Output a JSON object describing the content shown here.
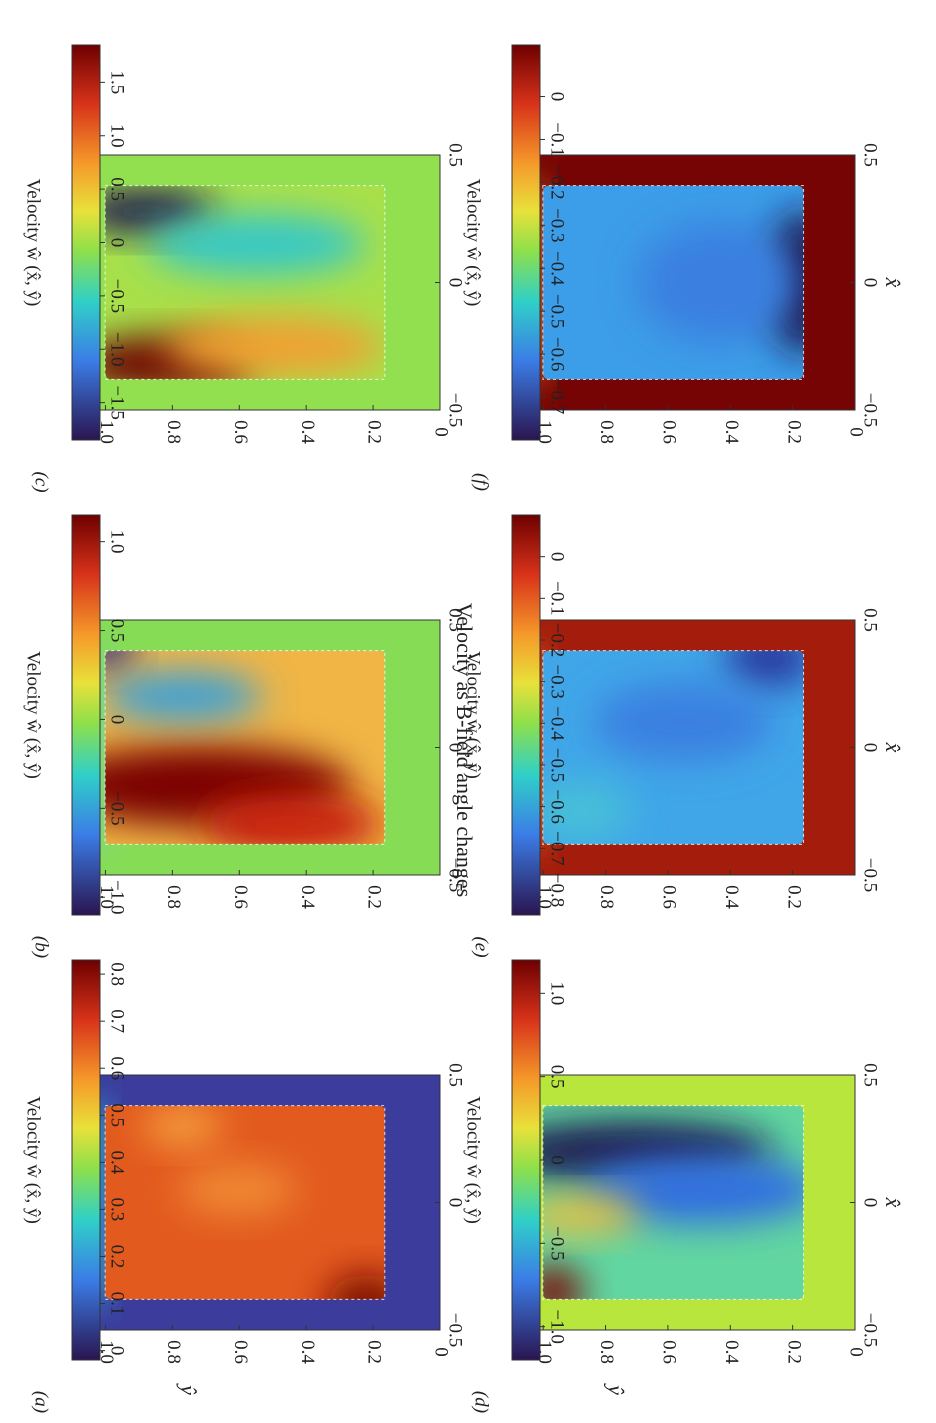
{
  "title": "Velocity as B-field angle changes",
  "chart_data": [
    {
      "type": "heatmap",
      "panel_label": "(a)",
      "ylabel": "ŷ",
      "colorbar_label": "Velocity ŵ (x̂, ŷ)",
      "xlim": [
        -0.5,
        0.5
      ],
      "xticks": [
        {
          "value": -0.5,
          "label": "−0.5"
        },
        0,
        0.5
      ],
      "ylim": [
        0,
        1.1
      ],
      "yticks": [
        0,
        0.2,
        0.4,
        0.6,
        0.8,
        {
          "value": 1,
          "label": "1.0"
        }
      ],
      "clim": [
        -0.02,
        0.83
      ],
      "cticks": [
        0,
        0.1,
        0.2,
        0.3,
        0.4,
        0.5,
        0.6,
        0.7,
        0.8
      ]
    },
    {
      "type": "heatmap",
      "panel_label": "(b)",
      "colorbar_label": "Velocity ŵ (x̂, ŷ)",
      "xlim": [
        -0.5,
        0.5
      ],
      "xticks": [
        {
          "value": -0.5,
          "label": "−0.5"
        },
        0,
        0.5
      ],
      "ylim": [
        0,
        1.1
      ],
      "yticks": [
        0.2,
        0.4,
        0.6,
        0.8,
        {
          "value": 1,
          "label": "1.0"
        }
      ],
      "clim": [
        -1.1,
        1.15
      ],
      "cticks": [
        {
          "value": 1,
          "label": "1.0"
        },
        0.5,
        0,
        {
          "value": -0.5,
          "label": "−0.5"
        },
        {
          "value": -1,
          "label": "−1.0"
        }
      ]
    },
    {
      "type": "heatmap",
      "panel_label": "(c)",
      "colorbar_label": "Velocity ŵ (x̂, ŷ)",
      "xlim": [
        -0.5,
        0.5
      ],
      "xticks": [
        {
          "value": -0.5,
          "label": "−0.5"
        },
        0,
        0.5
      ],
      "ylim": [
        0,
        1.1
      ],
      "yticks": [
        0,
        0.2,
        0.4,
        0.6,
        0.8,
        {
          "value": 1,
          "label": "1.0"
        }
      ],
      "clim": [
        -1.85,
        1.85
      ],
      "cticks": [
        1.5,
        {
          "value": 1,
          "label": "1.0"
        },
        0.5,
        0,
        {
          "value": -0.5,
          "label": "−0.5"
        },
        {
          "value": -1,
          "label": "−1.0"
        },
        {
          "value": -1.5,
          "label": "−1.5"
        }
      ]
    },
    {
      "type": "heatmap",
      "panel_label": "(d)",
      "ylabel": "ŷ",
      "xlabel": "x̂",
      "colorbar_label": "Velocity ŵ (x̂, ŷ)",
      "xlim": [
        -0.5,
        0.5
      ],
      "xticks": [
        {
          "value": -0.5,
          "label": "−0.5"
        },
        0,
        0.5
      ],
      "ylim": [
        0,
        1.1
      ],
      "yticks": [
        0,
        0.2,
        0.4,
        0.6,
        0.8,
        {
          "value": 1,
          "label": "1.0"
        }
      ],
      "clim": [
        -1.2,
        1.2
      ],
      "cticks": [
        {
          "value": 1,
          "label": "1.0"
        },
        0.5,
        0,
        {
          "value": -0.5,
          "label": "−0.5"
        },
        {
          "value": -1,
          "label": "−1.0"
        }
      ]
    },
    {
      "type": "heatmap",
      "panel_label": "(e)",
      "xlabel": "x̂",
      "colorbar_label": "Velocity ŵ (x̂, ŷ)",
      "xlim": [
        -0.5,
        0.5
      ],
      "xticks": [
        {
          "value": -0.5,
          "label": "−0.5"
        },
        0,
        0.5
      ],
      "ylim": [
        0,
        1.1
      ],
      "yticks": [
        0.2,
        0.4,
        0.6,
        0.8,
        {
          "value": 1,
          "label": "1.0"
        }
      ],
      "clim": [
        -0.86,
        0.1
      ],
      "cticks": [
        0,
        {
          "value": -0.1,
          "label": "−0.1"
        },
        {
          "value": -0.2,
          "label": "−0.2"
        },
        {
          "value": -0.3,
          "label": "−0.3"
        },
        {
          "value": -0.4,
          "label": "−0.4"
        },
        {
          "value": -0.5,
          "label": "−0.5"
        },
        {
          "value": -0.6,
          "label": "−0.6"
        },
        {
          "value": -0.7,
          "label": "−0.7"
        },
        {
          "value": -0.8,
          "label": "−0.8"
        }
      ]
    },
    {
      "type": "heatmap",
      "panel_label": "(f)",
      "xlabel": "x̂",
      "colorbar_label": "Velocity ŵ (x̂, ŷ)",
      "xlim": [
        -0.5,
        0.5
      ],
      "xticks": [
        {
          "value": -0.5,
          "label": "−0.5"
        },
        0,
        0.5
      ],
      "ylim": [
        0,
        1.1
      ],
      "yticks": [
        0,
        0.2,
        0.4,
        0.6,
        0.8,
        {
          "value": 1,
          "label": "1.0"
        }
      ],
      "clim": [
        -0.8,
        0.12
      ],
      "cticks": [
        0,
        {
          "value": -0.1,
          "label": "−0.1"
        },
        {
          "value": -0.2,
          "label": "−0.2"
        },
        {
          "value": -0.3,
          "label": "−0.3"
        },
        {
          "value": -0.4,
          "label": "−0.4"
        },
        {
          "value": -0.5,
          "label": "−0.5"
        },
        {
          "value": -0.6,
          "label": "−0.6"
        },
        {
          "value": -0.7,
          "label": "−0.7"
        }
      ]
    }
  ]
}
